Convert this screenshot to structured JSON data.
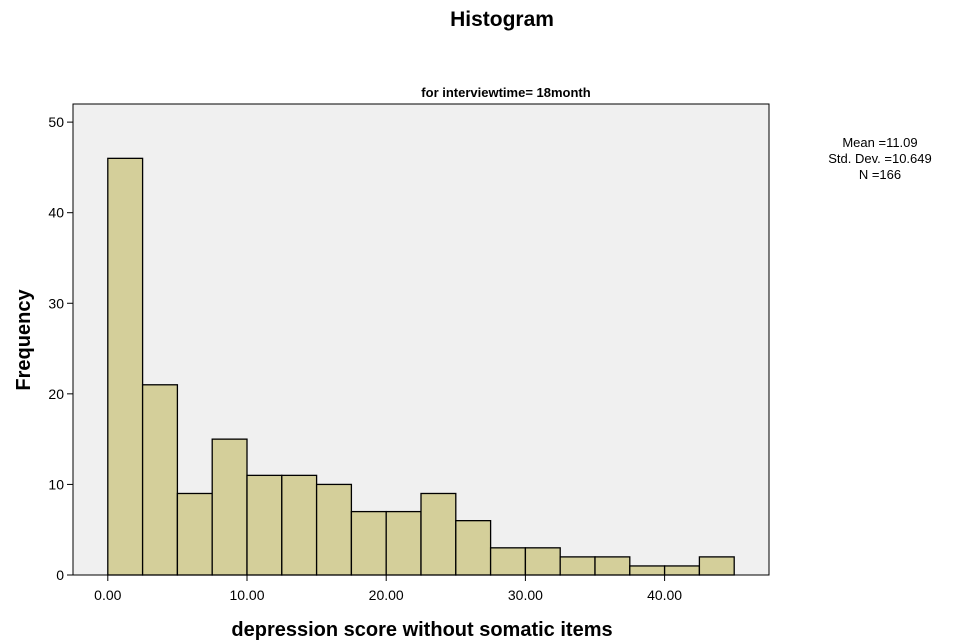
{
  "chart_data": {
    "type": "bar",
    "title": "Histogram",
    "subtitle": "for interviewtime= 18month",
    "xlabel": "depression score without somatic items",
    "ylabel": "Frequency",
    "bin_start": 0,
    "bin_width": 2.5,
    "values": [
      46,
      21,
      9,
      15,
      11,
      11,
      10,
      7,
      7,
      9,
      6,
      3,
      3,
      2,
      2,
      1,
      1,
      2
    ],
    "xlim": [
      -2.5,
      47.5
    ],
    "ylim": [
      0,
      52
    ],
    "x_ticks": [
      0,
      10,
      20,
      30,
      40
    ],
    "x_tick_labels": [
      "0.00",
      "10.00",
      "20.00",
      "30.00",
      "40.00"
    ],
    "y_ticks": [
      0,
      10,
      20,
      30,
      40,
      50
    ],
    "y_tick_labels": [
      "0",
      "10",
      "20",
      "30",
      "40",
      "50"
    ],
    "grid": false,
    "legend_position": "right",
    "stats": {
      "mean": "Mean =11.09",
      "std": "Std. Dev. =10.649",
      "n": "N =166"
    },
    "colors": {
      "bar_fill": "#d4cf9a",
      "bar_stroke": "#000000",
      "plot_background": "#f0f0f0"
    }
  }
}
